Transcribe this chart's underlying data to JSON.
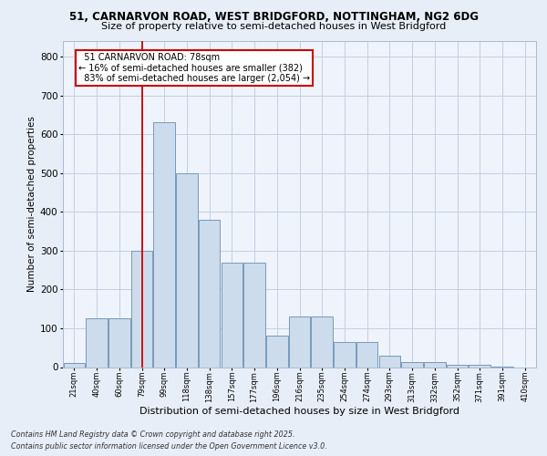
{
  "title_line1": "51, CARNARVON ROAD, WEST BRIDGFORD, NOTTINGHAM, NG2 6DG",
  "title_line2": "Size of property relative to semi-detached houses in West Bridgford",
  "xlabel": "Distribution of semi-detached houses by size in West Bridgford",
  "ylabel": "Number of semi-detached properties",
  "categories": [
    "21sqm",
    "40sqm",
    "60sqm",
    "79sqm",
    "99sqm",
    "118sqm",
    "138sqm",
    "157sqm",
    "177sqm",
    "196sqm",
    "216sqm",
    "235sqm",
    "254sqm",
    "274sqm",
    "293sqm",
    "313sqm",
    "332sqm",
    "352sqm",
    "371sqm",
    "391sqm",
    "410sqm"
  ],
  "values": [
    10,
    125,
    125,
    300,
    630,
    500,
    380,
    270,
    270,
    80,
    130,
    130,
    65,
    65,
    30,
    12,
    12,
    5,
    5,
    2,
    0
  ],
  "bar_color": "#ccdcec",
  "bar_edge_color": "#7799bb",
  "vline_x_index": 3,
  "marker_label": "51 CARNARVON ROAD: 78sqm",
  "marker_pct_smaller": "16%",
  "marker_count_smaller": "382",
  "marker_pct_larger": "83%",
  "marker_count_larger": "2,054",
  "property_type": "semi-detached",
  "vline_color": "#cc0000",
  "annotation_box_color": "#cc0000",
  "ylim": [
    0,
    840
  ],
  "yticks": [
    0,
    100,
    200,
    300,
    400,
    500,
    600,
    700,
    800
  ],
  "footer_line1": "Contains HM Land Registry data © Crown copyright and database right 2025.",
  "footer_line2": "Contains public sector information licensed under the Open Government Licence v3.0.",
  "bg_color": "#e8eef8",
  "plot_bg_color": "#eef3fc",
  "grid_color": "#c5cfe0",
  "title1_fontsize": 8.5,
  "title2_fontsize": 8.0,
  "ylabel_fontsize": 7.5,
  "xlabel_fontsize": 8.0,
  "xtick_fontsize": 6.0,
  "ytick_fontsize": 7.5,
  "ann_fontsize": 7.0,
  "footer_fontsize": 5.8
}
